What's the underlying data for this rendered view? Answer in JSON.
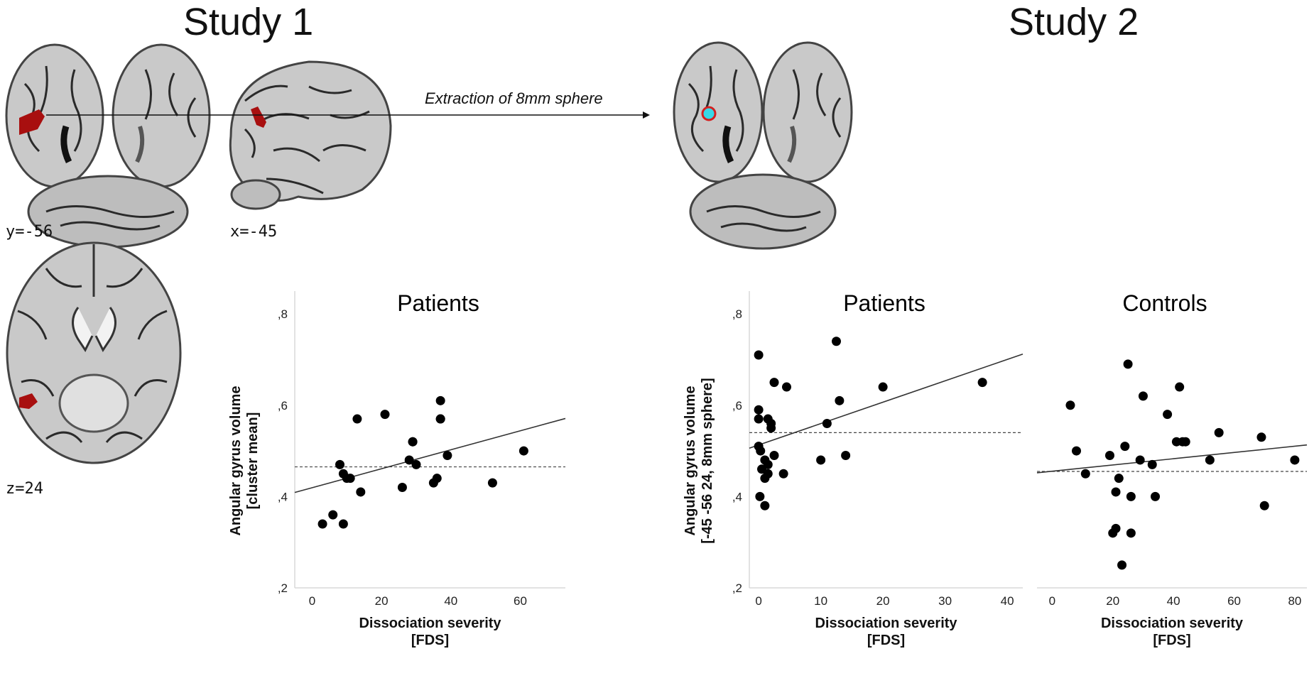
{
  "studies": {
    "study1_title": "Study 1",
    "study2_title": "Study 2"
  },
  "slices": {
    "coronal_label": "y=-56",
    "sagittal_label": "x=-45",
    "axial_label": "z=24"
  },
  "extraction_label": "Extraction of 8mm sphere",
  "colors": {
    "cluster": "#a80f0f",
    "sphere_fill": "#38d8e6",
    "sphere_ring": "#d42020",
    "brain_gray": "#c9c9c9",
    "sulci": "#2a2a2a"
  },
  "chart_data": [
    {
      "type": "scatter",
      "title": "Patients",
      "xlabel": "Dissociation severity",
      "xlabel2": "[FDS]",
      "ylabel": "Angular gyrus volume",
      "ylabel2": "[cluster mean]",
      "xlim": [
        -5,
        73
      ],
      "ylim": [
        0.2,
        0.85
      ],
      "xticks": [
        0,
        20,
        40,
        60
      ],
      "yticks": [
        0.2,
        0.4,
        0.6,
        0.8
      ],
      "ytick_labels": [
        ",2",
        ",4",
        ",6",
        ",8"
      ],
      "x": [
        3,
        6,
        8,
        9,
        9,
        10,
        11,
        13,
        14,
        21,
        26,
        28,
        29,
        29,
        30,
        35,
        36,
        37,
        37,
        37,
        39,
        52,
        61
      ],
      "y": [
        0.34,
        0.36,
        0.47,
        0.34,
        0.45,
        0.44,
        0.44,
        0.57,
        0.41,
        0.58,
        0.42,
        0.48,
        0.52,
        0.52,
        0.47,
        0.43,
        0.44,
        0.57,
        0.61,
        0.57,
        0.49,
        0.43,
        0.5
      ],
      "fit_line": [
        [
          -5,
          0.409
        ],
        [
          73,
          0.571
        ]
      ],
      "mean_line": 0.465,
      "grid": false
    },
    {
      "type": "scatter",
      "title": "Patients",
      "xlabel": "Dissociation severity",
      "xlabel2": "[FDS]",
      "ylabel": "Angular gyrus volume",
      "ylabel2": "[-45 -56 24, 8mm sphere]",
      "xlim": [
        -1.5,
        42.5
      ],
      "ylim": [
        0.2,
        0.85
      ],
      "xticks": [
        0,
        10,
        20,
        30,
        40
      ],
      "yticks": [
        0.2,
        0.4,
        0.6,
        0.8
      ],
      "ytick_labels": [
        ",2",
        ",4",
        ",6",
        ",8"
      ],
      "x": [
        0,
        0,
        0,
        0,
        0.2,
        0.3,
        0.5,
        1,
        1,
        1,
        1.5,
        1.5,
        1.5,
        2,
        2,
        2.5,
        2.5,
        4,
        4.5,
        10,
        11,
        12.5,
        13,
        14,
        20,
        36
      ],
      "y": [
        0.71,
        0.59,
        0.57,
        0.51,
        0.4,
        0.5,
        0.46,
        0.38,
        0.48,
        0.44,
        0.57,
        0.45,
        0.47,
        0.55,
        0.56,
        0.49,
        0.65,
        0.45,
        0.64,
        0.48,
        0.56,
        0.74,
        0.61,
        0.49,
        0.64,
        0.65
      ],
      "fit_line": [
        [
          -1.5,
          0.506
        ],
        [
          42.5,
          0.712
        ]
      ],
      "mean_line": 0.54,
      "grid": false
    },
    {
      "type": "scatter",
      "title": "Controls",
      "xlabel": "Dissociation severity",
      "xlabel2": "[FDS]",
      "ylabel": "",
      "xlim": [
        -5,
        84
      ],
      "ylim": [
        0.2,
        0.85
      ],
      "xticks": [
        0,
        20,
        40,
        60,
        80
      ],
      "yticks": [
        0.2,
        0.4,
        0.6,
        0.8
      ],
      "x": [
        6,
        8,
        11,
        19,
        20,
        21,
        21,
        22,
        23,
        24,
        25,
        26,
        26,
        29,
        30,
        33,
        34,
        38,
        41,
        42,
        43,
        44,
        52,
        55,
        69,
        70,
        80
      ],
      "y": [
        0.6,
        0.5,
        0.45,
        0.49,
        0.32,
        0.41,
        0.33,
        0.44,
        0.25,
        0.51,
        0.69,
        0.4,
        0.32,
        0.48,
        0.62,
        0.47,
        0.4,
        0.58,
        0.52,
        0.64,
        0.52,
        0.52,
        0.48,
        0.54,
        0.53,
        0.38,
        0.48
      ],
      "fit_line": [
        [
          -5,
          0.452
        ],
        [
          84,
          0.513
        ]
      ],
      "mean_line": 0.455,
      "grid": false
    }
  ]
}
